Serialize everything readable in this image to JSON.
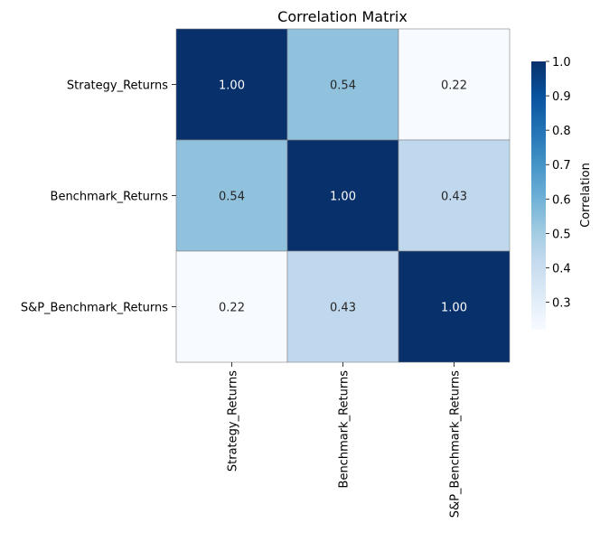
{
  "chart_data": {
    "type": "heatmap",
    "title": "Correlation Matrix",
    "rows": [
      "Strategy_Returns",
      "Benchmark_Returns",
      "S&P_Benchmark_Returns"
    ],
    "columns": [
      "Strategy_Returns",
      "Benchmark_Returns",
      "S&P_Benchmark_Returns"
    ],
    "values": [
      [
        1.0,
        0.54,
        0.22
      ],
      [
        0.54,
        1.0,
        0.43
      ],
      [
        0.22,
        0.43,
        1.0
      ]
    ],
    "value_format": "2 decimals",
    "colormap": "Blues",
    "vmin": 0.22,
    "vmax": 1.0,
    "colorbar": {
      "label": "Correlation",
      "ticks": [
        "0.3",
        "0.4",
        "0.5",
        "0.6",
        "0.7",
        "0.8",
        "0.9",
        "1.0"
      ]
    },
    "cell_border_color": "#808080",
    "x_tick_rotation": "vertical"
  }
}
